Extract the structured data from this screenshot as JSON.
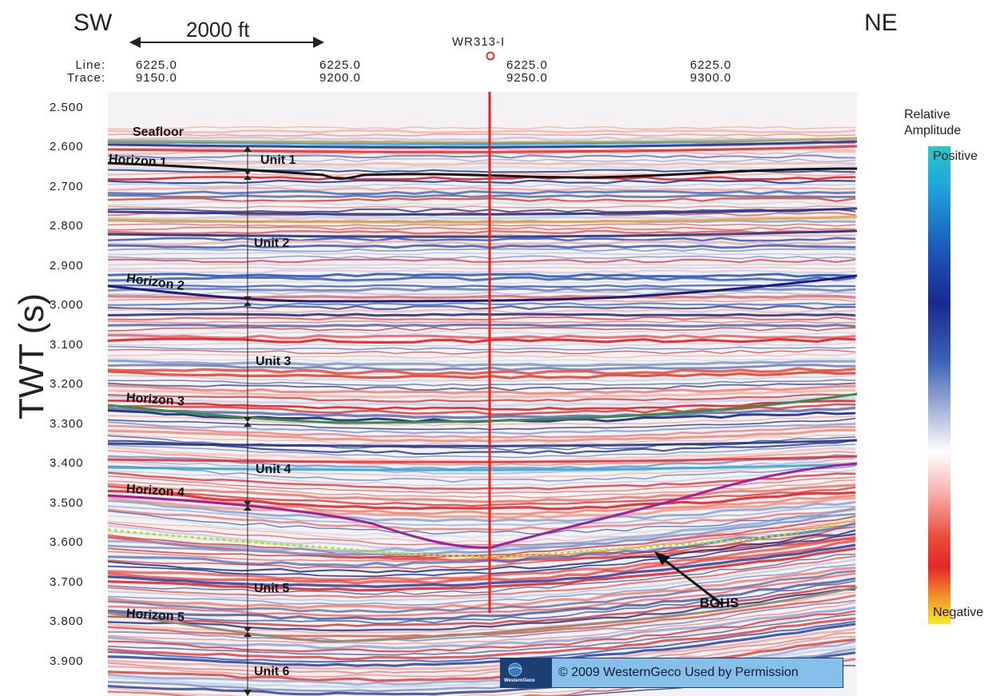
{
  "orientation": {
    "left": "SW",
    "right": "NE"
  },
  "scale_bar": {
    "label": "2000 ft"
  },
  "well": {
    "name": "WR313-I",
    "color": "#e62020"
  },
  "header_labels": {
    "line": "Line:",
    "trace": "Trace:"
  },
  "trace_headers": [
    {
      "line": "6225.0",
      "trace": "9150.0"
    },
    {
      "line": "6225.0",
      "trace": "9200.0"
    },
    {
      "line": "6225.0",
      "trace": "9250.0"
    },
    {
      "line": "6225.0",
      "trace": "9300.0"
    }
  ],
  "y_axis": {
    "label": "TWT (s)",
    "ticks": [
      "2.500",
      "2.600",
      "2.700",
      "2.800",
      "2.900",
      "3.000",
      "3.100",
      "3.200",
      "3.300",
      "3.400",
      "3.500",
      "3.600",
      "3.700",
      "3.800",
      "3.900"
    ]
  },
  "horizons": [
    {
      "name": "Seafloor",
      "color": "#f0a030"
    },
    {
      "name": "Horizon 1",
      "color": "#111111"
    },
    {
      "name": "Horizon 2",
      "color": "#1c1c7a"
    },
    {
      "name": "Horizon 3",
      "color": "#3f8a4a"
    },
    {
      "name": "Horizon 4",
      "color": "#a0209a"
    },
    {
      "name": "Horizon 5",
      "color": "#9a8a78"
    }
  ],
  "units": [
    "Unit 1",
    "Unit 2",
    "Unit 3",
    "Unit 4",
    "Unit 5",
    "Unit 6"
  ],
  "bghs_label": "BGHS",
  "legend": {
    "title_line1": "Relative",
    "title_line2": "Amplitude",
    "positive": "Positive",
    "negative": "Negative"
  },
  "copyright": {
    "logo_text": "WesternGeco",
    "text": "© 2009  WesternGeco  Used by Permission"
  }
}
